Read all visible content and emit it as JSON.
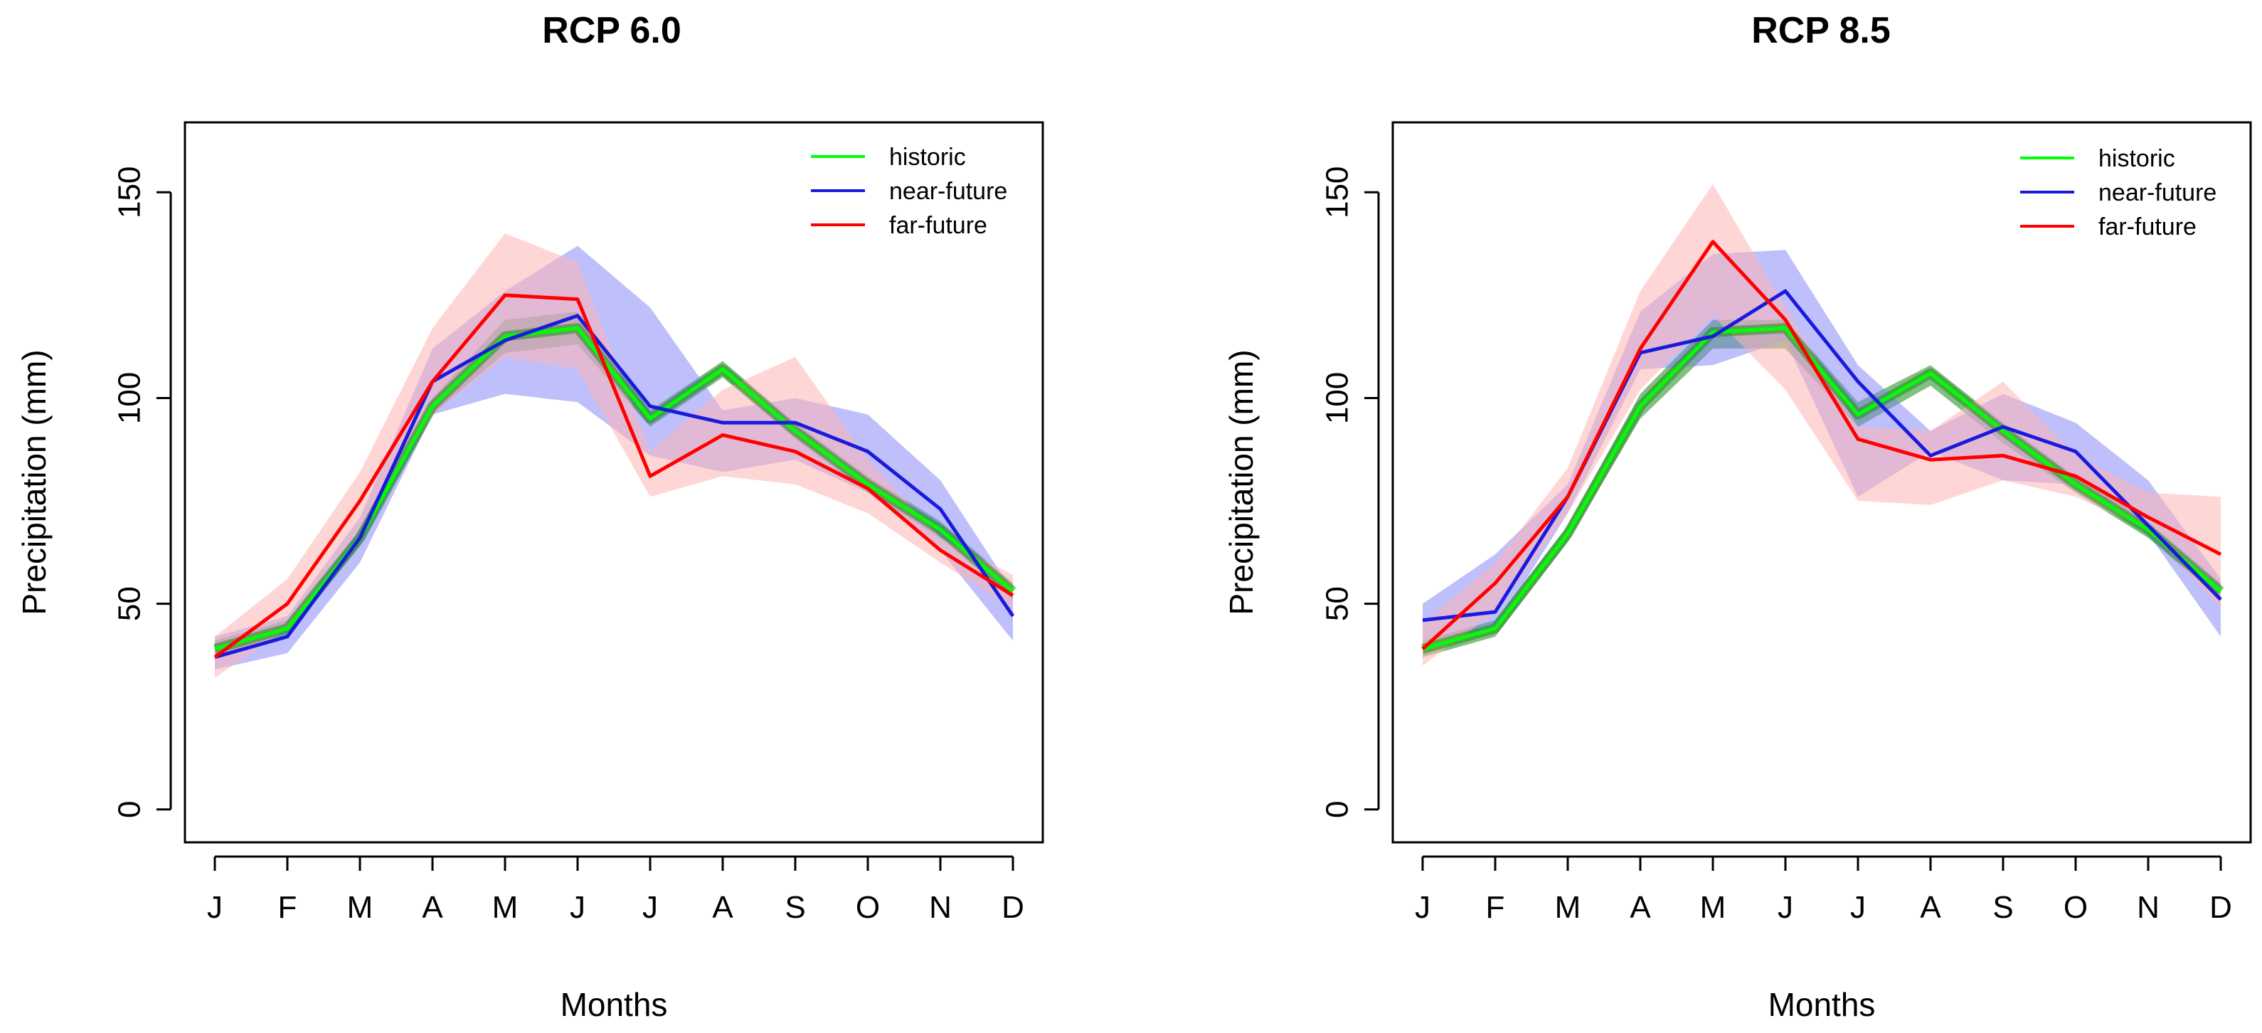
{
  "chart_data": [
    {
      "type": "line",
      "title": "RCP 6.0",
      "xlabel": "Months",
      "ylabel": "Precipitation (mm)",
      "categories": [
        "J",
        "F",
        "M",
        "A",
        "M",
        "J",
        "J",
        "A",
        "S",
        "O",
        "N",
        "D"
      ],
      "ylim": [
        -8,
        167
      ],
      "yticks": [
        0,
        50,
        100,
        150
      ],
      "grid": false,
      "legend_position": "top-right",
      "series": [
        {
          "name": "historic",
          "color": "#00ff00",
          "band_color": "#1a8c1a",
          "values": [
            39,
            44,
            66,
            98,
            115,
            117,
            95,
            107,
            92,
            79,
            68,
            53
          ],
          "lower": [
            37,
            42,
            64,
            96,
            111,
            113,
            93,
            105,
            90,
            77,
            66,
            51
          ],
          "upper": [
            41,
            46,
            68,
            100,
            119,
            121,
            97,
            109,
            94,
            81,
            70,
            55
          ]
        },
        {
          "name": "near-future",
          "color": "#1a1adc",
          "band_color": "#8080f8",
          "values": [
            37,
            42,
            66,
            104,
            114,
            120,
            98,
            94,
            94,
            87,
            73,
            47
          ],
          "lower": [
            34,
            38,
            60,
            96,
            101,
            99,
            86,
            82,
            85,
            77,
            63,
            41
          ],
          "upper": [
            42,
            47,
            71,
            112,
            126,
            137,
            122,
            97,
            100,
            96,
            80,
            53
          ]
        },
        {
          "name": "far-future",
          "color": "#ff0000",
          "band_color": "#ffb4b4",
          "values": [
            37,
            50,
            75,
            104,
            125,
            124,
            81,
            91,
            87,
            78,
            63,
            52
          ],
          "lower": [
            32,
            44,
            68,
            96,
            110,
            107,
            76,
            81,
            79,
            72,
            60,
            49
          ],
          "upper": [
            42,
            56,
            82,
            117,
            140,
            133,
            87,
            102,
            110,
            85,
            66,
            57
          ]
        }
      ]
    },
    {
      "type": "line",
      "title": "RCP 8.5",
      "xlabel": "Months",
      "ylabel": "Precipitation (mm)",
      "categories": [
        "J",
        "F",
        "M",
        "A",
        "M",
        "J",
        "J",
        "A",
        "S",
        "O",
        "N",
        "D"
      ],
      "ylim": [
        -8,
        167
      ],
      "yticks": [
        0,
        50,
        100,
        150
      ],
      "grid": false,
      "legend_position": "top-right",
      "series": [
        {
          "name": "historic",
          "color": "#00ff00",
          "band_color": "#1a8c1a",
          "values": [
            39,
            44,
            67,
            98,
            116,
            117,
            96,
            106,
            92,
            79,
            68,
            53
          ],
          "lower": [
            37,
            42,
            65,
            95,
            112,
            112,
            93,
            103,
            89,
            77,
            66,
            51
          ],
          "upper": [
            41,
            46,
            69,
            101,
            119,
            119,
            99,
            108,
            94,
            81,
            70,
            55
          ]
        },
        {
          "name": "near-future",
          "color": "#1a1adc",
          "band_color": "#8080f8",
          "values": [
            46,
            48,
            76,
            111,
            115,
            126,
            104,
            86,
            93,
            87,
            69,
            51
          ],
          "lower": [
            41,
            44,
            72,
            107,
            108,
            114,
            76,
            87,
            80,
            79,
            67,
            42
          ],
          "upper": [
            50,
            62,
            79,
            121,
            135,
            136,
            108,
            92,
            101,
            94,
            80,
            56
          ]
        },
        {
          "name": "far-future",
          "color": "#ff0000",
          "band_color": "#ffb4b4",
          "values": [
            39,
            55,
            76,
            112,
            138,
            119,
            90,
            85,
            86,
            81,
            71,
            62
          ],
          "lower": [
            35,
            48,
            72,
            102,
            120,
            102,
            75,
            74,
            80,
            76,
            68,
            49
          ],
          "upper": [
            45,
            60,
            83,
            126,
            152,
            122,
            93,
            92,
            104,
            86,
            77,
            76
          ]
        }
      ]
    }
  ]
}
